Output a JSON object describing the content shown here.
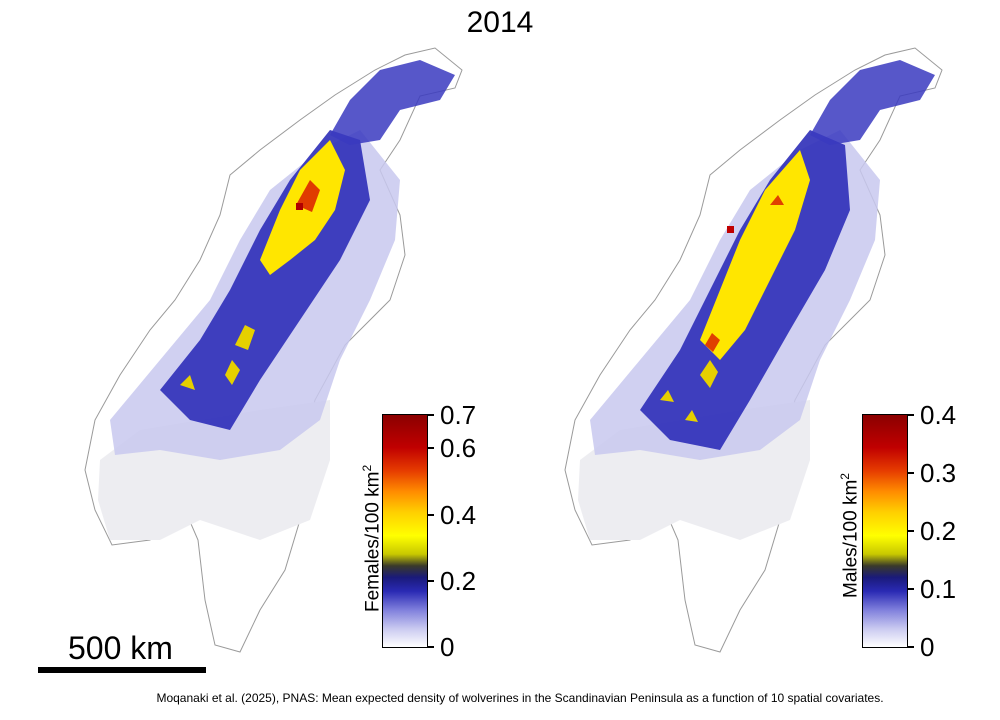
{
  "title": "2014",
  "maps": [
    {
      "id": "females",
      "legend": {
        "title": "Females/100 km",
        "superscript": "2",
        "ticks": [
          "0.7",
          "0.6",
          "0.4",
          "0.2",
          "0"
        ]
      }
    },
    {
      "id": "males",
      "legend": {
        "title": "Males/100 km",
        "superscript": "2",
        "ticks": [
          "0.4",
          "0.3",
          "0.2",
          "0.1",
          "0"
        ]
      }
    }
  ],
  "colors": {
    "low": "#f0f0f4",
    "mid_low": "#2a2ab4",
    "mid": "#ffff00",
    "high": "#8b0000",
    "border": "#9a9a9a"
  },
  "scale_bar": {
    "label": "500 km"
  },
  "caption": "Moqanaki et al. (2025), PNAS: Mean expected density of wolverines in the Scandinavian Peninsula as a function of 10 spatial covariates."
}
